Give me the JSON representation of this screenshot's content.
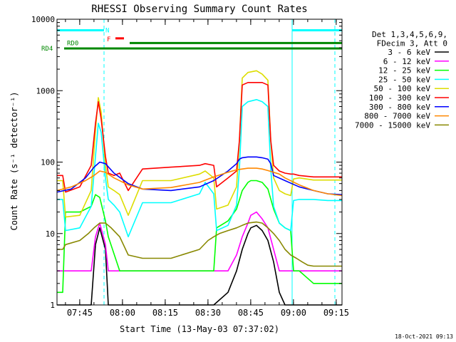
{
  "chart_data": {
    "type": "line",
    "title": "RHESSI Observing Summary Count Rates",
    "xlabel": "Start Time (13-May-03 07:37:02)",
    "ylabel": "Count Rate (s⁻¹ detector⁻¹)",
    "yscale": "log",
    "ylim": [
      1,
      10000
    ],
    "xlim_minutes": [
      0,
      100
    ],
    "x_start_time": "07:37:02",
    "x_ticks": [
      {
        "label": "07:45",
        "minute": 7.97
      },
      {
        "label": "08:00",
        "minute": 22.97
      },
      {
        "label": "08:15",
        "minute": 37.97
      },
      {
        "label": "08:30",
        "minute": 52.97
      },
      {
        "label": "08:45",
        "minute": 67.97
      },
      {
        "label": "09:00",
        "minute": 82.97
      },
      {
        "label": "09:15",
        "minute": 97.97
      }
    ],
    "y_ticks": [
      {
        "label": "1",
        "value": 1
      },
      {
        "label": "10",
        "value": 10
      },
      {
        "label": "100",
        "value": 100
      },
      {
        "label": "1000",
        "value": 1000
      },
      {
        "label": "10000",
        "value": 10000
      }
    ],
    "legend_header": [
      "Det 1,3,4,5,6,9,",
      "FDecim 3, Att 0"
    ],
    "legend_position": "right",
    "timestamp": "18-Oct-2021 09:13",
    "flags": {
      "N_label": "N",
      "F_label": "F",
      "RD0_label": "RD0",
      "RD4_label": "RD4"
    },
    "series": [
      {
        "name": "3 - 6 keV",
        "color": "#000000",
        "x": [
          0,
          8,
          12,
          13.5,
          15,
          17,
          18,
          22,
          30,
          40,
          50,
          55,
          60,
          63,
          65,
          67,
          68,
          70,
          72,
          74,
          76,
          78,
          80,
          85,
          90,
          95,
          100
        ],
        "y": [
          1,
          1,
          1,
          7,
          12,
          6,
          1,
          1,
          1,
          1,
          1,
          1,
          1.5,
          3,
          6,
          10,
          12,
          13,
          11,
          8,
          4,
          1.5,
          1,
          1,
          1,
          1,
          1
        ]
      },
      {
        "name": "6 - 12 keV",
        "color": "#ff00ff",
        "x": [
          0,
          8,
          12,
          13.5,
          15,
          17,
          18,
          22,
          30,
          40,
          50,
          55,
          60,
          63,
          65,
          67,
          68,
          70,
          72,
          74,
          76,
          78,
          80,
          85,
          90,
          95,
          100
        ],
        "y": [
          3,
          3,
          3,
          9,
          14,
          7,
          3,
          3,
          3,
          3,
          3,
          3,
          3,
          5,
          9,
          14,
          18,
          20,
          16,
          12,
          6,
          3,
          3,
          3,
          3,
          3,
          3
        ]
      },
      {
        "name": "12 - 25 keV",
        "color": "#00ff00",
        "x": [
          0,
          2,
          3,
          8,
          12,
          13.5,
          15,
          17,
          18,
          22,
          25,
          30,
          40,
          50,
          55,
          56,
          60,
          63,
          65,
          67,
          68,
          70,
          72,
          74,
          76,
          78,
          80,
          82,
          83,
          85,
          90,
          95,
          100
        ],
        "y": [
          1.5,
          1.5,
          20,
          20,
          24,
          35,
          32,
          15,
          9,
          3,
          3,
          3,
          3,
          3,
          3,
          12,
          15,
          22,
          40,
          52,
          55,
          55,
          52,
          42,
          22,
          14,
          12,
          11,
          3,
          3,
          2,
          2,
          2
        ]
      },
      {
        "name": "25 - 50 keV",
        "color": "#00ffff",
        "x": [
          0,
          2,
          3,
          8,
          12,
          13.5,
          14.5,
          15.5,
          17,
          18,
          20,
          22,
          25,
          30,
          40,
          50,
          52,
          55,
          56,
          60,
          63,
          64,
          65,
          67,
          70,
          72,
          74,
          75,
          76,
          78,
          80,
          82,
          83,
          85,
          90,
          95,
          100
        ],
        "y": [
          30,
          30,
          11,
          12,
          24,
          120,
          350,
          260,
          60,
          30,
          25,
          20,
          9,
          27,
          27,
          36,
          52,
          36,
          11,
          13,
          25,
          80,
          600,
          700,
          750,
          700,
          600,
          80,
          24,
          14,
          12,
          11,
          29,
          30,
          30,
          29,
          29
        ]
      },
      {
        "name": "50 - 100 keV",
        "color": "#dddd00",
        "x": [
          0,
          2,
          3,
          8,
          12,
          13.5,
          14.5,
          15.5,
          17,
          18,
          20,
          22,
          25,
          30,
          40,
          50,
          52,
          55,
          56,
          60,
          63,
          64,
          65,
          67,
          70,
          72,
          74,
          75,
          76,
          78,
          80,
          82,
          83,
          85,
          90,
          95,
          100
        ],
        "y": [
          55,
          55,
          17,
          18,
          40,
          280,
          800,
          500,
          90,
          45,
          40,
          35,
          18,
          55,
          55,
          68,
          75,
          60,
          22,
          25,
          45,
          200,
          1500,
          1800,
          1900,
          1700,
          1400,
          200,
          60,
          40,
          36,
          34,
          58,
          60,
          56,
          56,
          56
        ]
      },
      {
        "name": "100 - 300 keV",
        "color": "#ff0000",
        "x": [
          0,
          2,
          3,
          8,
          12,
          13.5,
          14.5,
          15.5,
          17,
          18,
          20,
          22,
          25,
          30,
          40,
          50,
          52,
          55,
          56,
          60,
          63,
          64,
          65,
          67,
          70,
          72,
          74,
          75,
          76,
          78,
          80,
          82,
          83,
          85,
          90,
          95,
          100
        ],
        "y": [
          65,
          65,
          38,
          45,
          90,
          350,
          700,
          400,
          120,
          70,
          65,
          70,
          40,
          80,
          85,
          90,
          95,
          90,
          45,
          60,
          75,
          200,
          1200,
          1300,
          1300,
          1300,
          1200,
          200,
          90,
          75,
          70,
          68,
          68,
          65,
          62,
          62,
          62
        ]
      },
      {
        "name": "300 - 800 keV",
        "color": "#0000ff",
        "x": [
          0,
          5,
          10,
          13,
          15,
          17,
          20,
          25,
          30,
          40,
          50,
          55,
          60,
          63,
          64,
          65,
          67,
          70,
          72,
          74,
          75,
          76,
          80,
          85,
          90,
          95,
          100
        ],
        "y": [
          38,
          42,
          60,
          85,
          100,
          95,
          70,
          50,
          42,
          40,
          45,
          55,
          75,
          95,
          110,
          115,
          118,
          118,
          115,
          110,
          95,
          65,
          55,
          45,
          40,
          36,
          35
        ]
      },
      {
        "name": "800 - 7000 keV",
        "color": "#ff8800",
        "x": [
          0,
          5,
          10,
          13,
          15,
          17,
          20,
          25,
          30,
          40,
          50,
          55,
          60,
          63,
          65,
          67,
          70,
          72,
          74,
          76,
          78,
          80,
          85,
          90,
          95,
          100
        ],
        "y": [
          40,
          45,
          55,
          65,
          75,
          72,
          60,
          48,
          42,
          44,
          52,
          62,
          72,
          78,
          80,
          82,
          82,
          80,
          76,
          72,
          68,
          60,
          48,
          40,
          36,
          34
        ]
      },
      {
        "name": "7000 - 15000 keV",
        "color": "#888800",
        "x": [
          0,
          2,
          3,
          8,
          11,
          13,
          15,
          17,
          19,
          22,
          25,
          30,
          40,
          50,
          53,
          55,
          57,
          60,
          63,
          65,
          67,
          70,
          72,
          74,
          76,
          78,
          80,
          82,
          84,
          86,
          88,
          90,
          95,
          100
        ],
        "y": [
          6,
          6,
          7,
          8,
          10,
          12,
          14,
          14,
          12,
          9,
          5,
          4.5,
          4.5,
          6,
          8,
          9,
          10,
          11,
          12,
          13,
          14,
          14.5,
          14,
          12,
          10,
          8,
          6,
          5,
          4.5,
          4,
          3.6,
          3.5,
          3.5,
          3.5
        ]
      }
    ],
    "intervals": [
      {
        "name": "night",
        "label": "N",
        "color": "#00ffff",
        "x": [
          0,
          16.5
        ],
        "y": 7000
      },
      {
        "name": "night-2",
        "color": "#00ffff",
        "x": [
          82.5,
          100
        ],
        "y": 7000
      },
      {
        "name": "flare",
        "label": "F",
        "color": "#ff0000",
        "x": [
          20.5,
          23.5
        ],
        "y": 5400
      },
      {
        "name": "RD0",
        "label": "RD0",
        "color": "#008800",
        "x": [
          25.5,
          100
        ],
        "y": 4650
      },
      {
        "name": "RD4",
        "label": "RD4",
        "color": "#008800",
        "x": [
          2.5,
          100
        ],
        "y": 3900
      }
    ],
    "markers": [
      {
        "name": "saa-bar-left",
        "color": "#00ffff",
        "x": 0,
        "style": "solid"
      },
      {
        "name": "dashed-line-left",
        "color": "#00ffff",
        "x": 16.5,
        "style": "dashed"
      },
      {
        "name": "saa-bar-right",
        "color": "#00ffff",
        "x": 82.5,
        "style": "solid"
      },
      {
        "name": "dashed-line-right",
        "color": "#00ffff",
        "x": 97.5,
        "style": "dashed"
      }
    ]
  }
}
